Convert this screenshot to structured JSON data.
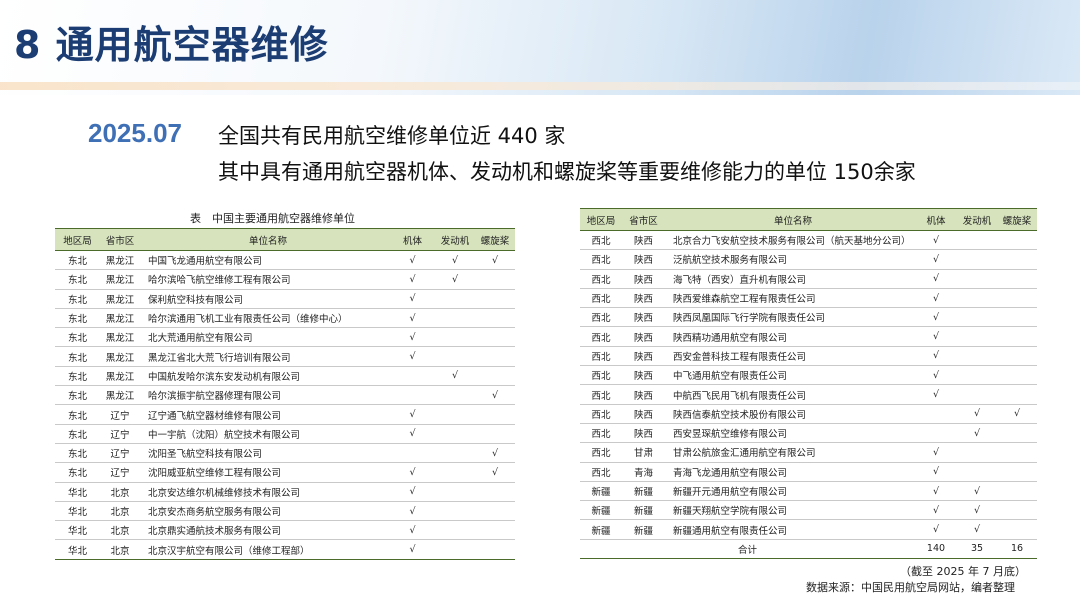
{
  "header": {
    "title": "8 通用航空器维修"
  },
  "summary": {
    "date": "2025.07",
    "line1": "全国共有民用航空维修单位近 440 家",
    "line2": "其中具有通用航空器机体、发动机和螺旋桨等重要维修能力的单位 150余家"
  },
  "caption": "表　中国主要通用航空器维修单位",
  "columns": [
    "地区局",
    "省市区",
    "单位名称",
    "机体",
    "发动机",
    "螺旋桨"
  ],
  "table_left": {
    "rows": [
      [
        "东北",
        "黑龙江",
        "中国飞龙通用航空有限公司",
        "√",
        "√",
        "√"
      ],
      [
        "东北",
        "黑龙江",
        "哈尔滨哈飞航空维修工程有限公司",
        "√",
        "√",
        null
      ],
      [
        "东北",
        "黑龙江",
        "保利航空科技有限公司",
        "√",
        null,
        null
      ],
      [
        "东北",
        "黑龙江",
        "哈尔滨通用飞机工业有限责任公司（维修中心）",
        "√",
        null,
        null
      ],
      [
        "东北",
        "黑龙江",
        "北大荒通用航空有限公司",
        "√",
        null,
        null
      ],
      [
        "东北",
        "黑龙江",
        "黑龙江省北大荒飞行培训有限公司",
        "√",
        null,
        null
      ],
      [
        "东北",
        "黑龙江",
        "中国航发哈尔滨东安发动机有限公司",
        null,
        "√",
        null
      ],
      [
        "东北",
        "黑龙江",
        "哈尔滨振宇航空器修理有限公司",
        null,
        null,
        "√"
      ],
      [
        "东北",
        "辽宁",
        "辽宁通飞航空器材维修有限公司",
        "√",
        null,
        null
      ],
      [
        "东北",
        "辽宁",
        "中一宇航（沈阳）航空技术有限公司",
        "√",
        null,
        null
      ],
      [
        "东北",
        "辽宁",
        "沈阳圣飞航空科技有限公司",
        null,
        null,
        "√"
      ],
      [
        "东北",
        "辽宁",
        "沈阳威亚航空维修工程有限公司",
        "√",
        null,
        "√"
      ],
      [
        "华北",
        "北京",
        "北京安达维尔机械维修技术有限公司",
        "√",
        null,
        null
      ],
      [
        "华北",
        "北京",
        "北京安杰商务航空服务有限公司",
        "√",
        null,
        null
      ],
      [
        "华北",
        "北京",
        "北京鼎实通航技术服务有限公司",
        "√",
        null,
        null
      ],
      [
        "华北",
        "北京",
        "北京汉宇航空有限公司（维修工程部）",
        "√",
        null,
        null
      ]
    ]
  },
  "table_right": {
    "rows": [
      [
        "西北",
        "陕西",
        "北京合力飞安航空技术服务有限公司（航天基地分公司）",
        "√",
        null,
        null
      ],
      [
        "西北",
        "陕西",
        "泛航航空技术服务有限公司",
        "√",
        null,
        null
      ],
      [
        "西北",
        "陕西",
        "海飞特（西安）直升机有限公司",
        "√",
        null,
        null
      ],
      [
        "西北",
        "陕西",
        "陕西爱维森航空工程有限责任公司",
        "√",
        null,
        null
      ],
      [
        "西北",
        "陕西",
        "陕西凤凰国际飞行学院有限责任公司",
        "√",
        null,
        null
      ],
      [
        "西北",
        "陕西",
        "陕西精功通用航空有限公司",
        "√",
        null,
        null
      ],
      [
        "西北",
        "陕西",
        "西安金普科技工程有限责任公司",
        "√",
        null,
        null
      ],
      [
        "西北",
        "陕西",
        "中飞通用航空有限责任公司",
        "√",
        null,
        null
      ],
      [
        "西北",
        "陕西",
        "中航西飞民用飞机有限责任公司",
        "√",
        null,
        null
      ],
      [
        "西北",
        "陕西",
        "陕西信泰航空技术股份有限公司",
        null,
        "√",
        "√"
      ],
      [
        "西北",
        "陕西",
        "西安昱琛航空维修有限公司",
        null,
        "√",
        null
      ],
      [
        "西北",
        "甘肃",
        "甘肃公航旅金汇通用航空有限公司",
        "√",
        null,
        null
      ],
      [
        "西北",
        "青海",
        "青海飞龙通用航空有限公司",
        "√",
        null,
        null
      ],
      [
        "新疆",
        "新疆",
        "新疆开元通用航空有限公司",
        "√",
        "√",
        null
      ],
      [
        "新疆",
        "新疆",
        "新疆天翔航空学院有限公司",
        "√",
        "√",
        null
      ],
      [
        "新疆",
        "新疆",
        "新疆通用航空有限责任公司",
        "√",
        "√",
        null
      ]
    ],
    "total": {
      "label": "合计",
      "values": [
        140,
        35,
        16
      ]
    }
  },
  "note": "（截至 2025 年 7 月底）",
  "source": "数据来源：中国民用航空局网站，编者整理"
}
